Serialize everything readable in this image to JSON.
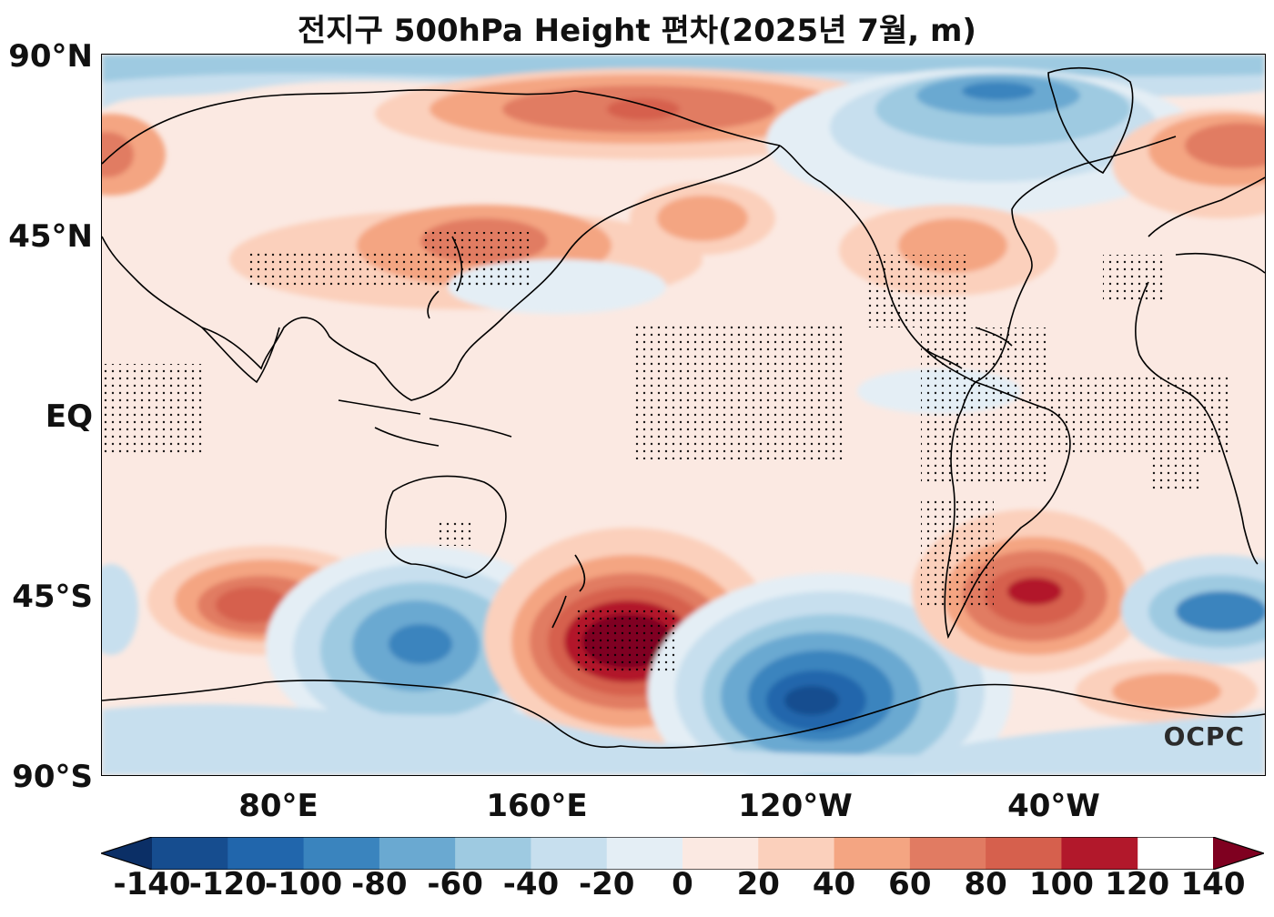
{
  "title": "전지구 500hPa Height 편차(2025년 7월, m)",
  "lat_labels": [
    "90°N",
    "45°N",
    "EQ",
    "45°S",
    "90°S"
  ],
  "lon_labels": [
    "80°E",
    "160°E",
    "120°W",
    "40°W"
  ],
  "colorbar": {
    "ticks": [
      "-140",
      "-120",
      "-100",
      "-80",
      "-60",
      "-40",
      "-20",
      "0",
      "20",
      "40",
      "60",
      "80",
      "100",
      "120",
      "140"
    ],
    "colors": [
      "#0b2f66",
      "#164d8f",
      "#2166ac",
      "#3a84be",
      "#6aa9d1",
      "#9ecae1",
      "#c7dfee",
      "#e4eef5",
      "#fbe9e2",
      "#fbd0bc",
      "#f4a582",
      "#e17b62",
      "#d6604d",
      "#b2182b",
      "#7f0020"
    ]
  },
  "watermark": "OCPC",
  "map": {
    "projection": "Plate Carree, centered on 180°",
    "lat_range": [
      -90,
      90
    ],
    "lon_range": [
      36,
      396
    ]
  }
}
